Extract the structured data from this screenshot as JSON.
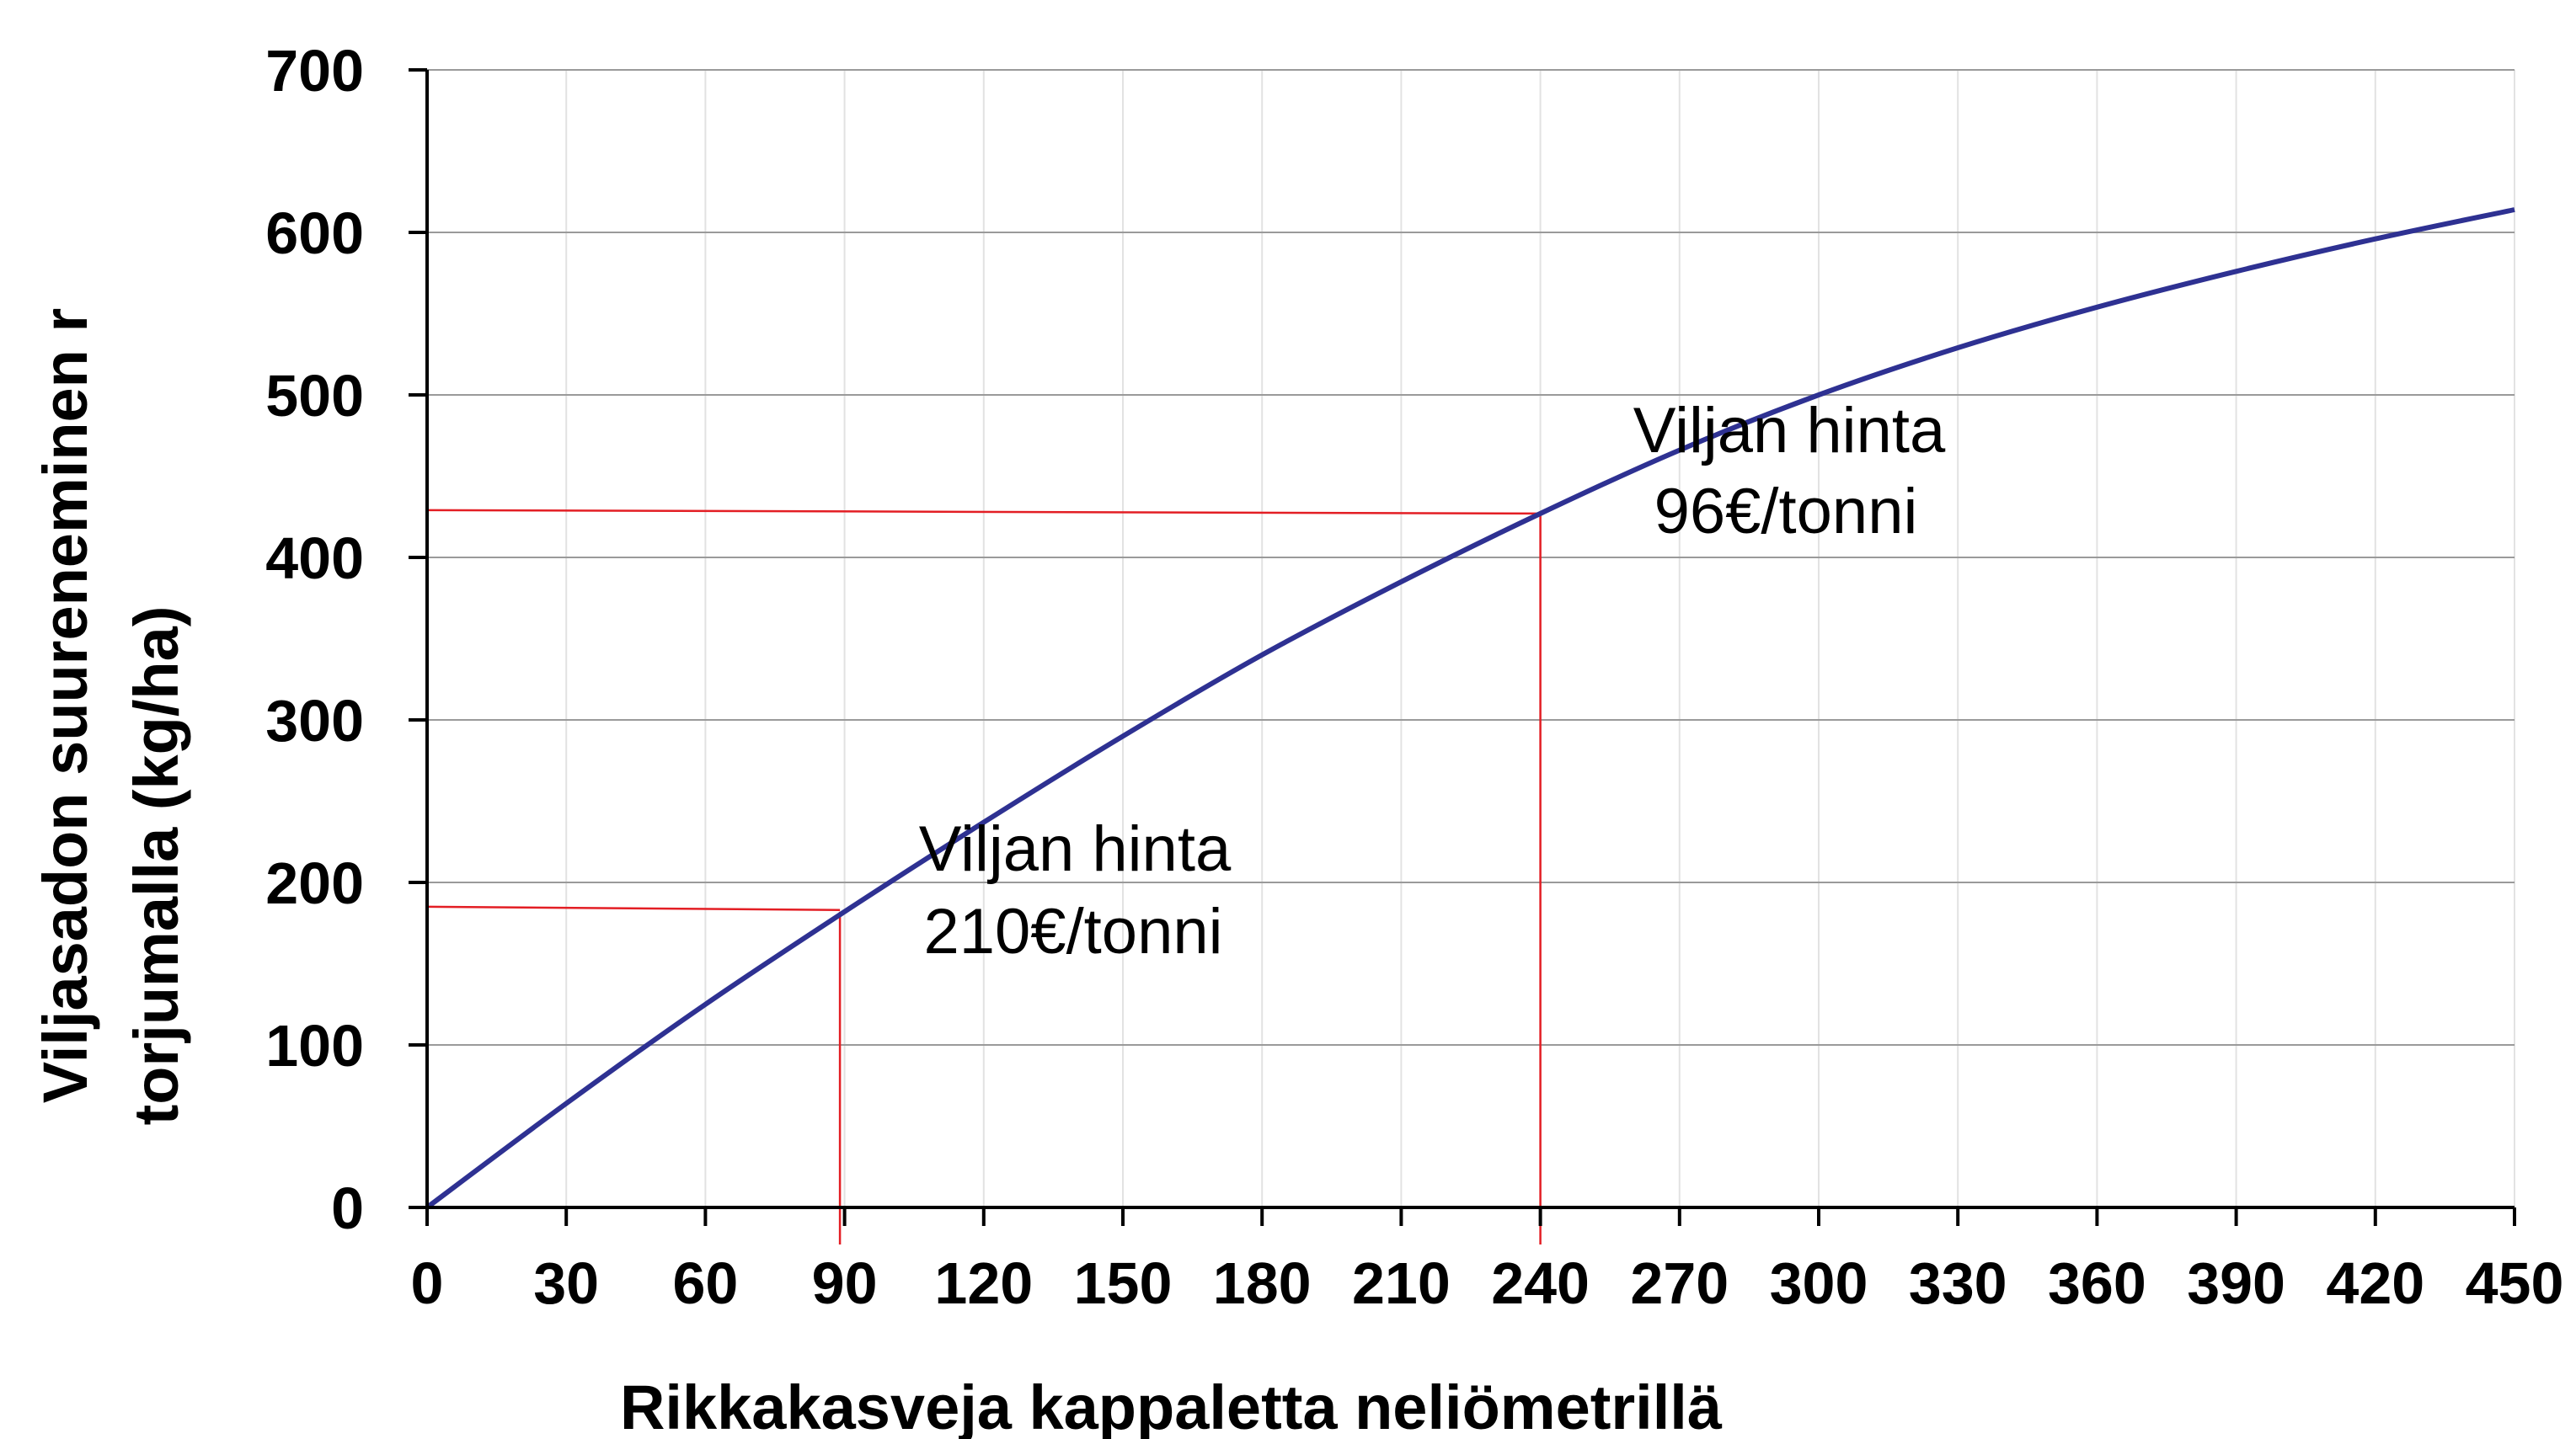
{
  "chart_data": {
    "type": "line",
    "xlabel": "Rikkakasveja kappaletta neliömetrillä",
    "ylabel_lines": [
      "Viljasadon suureneminen r",
      "torjumalla (kg/ha)"
    ],
    "xlim": [
      0,
      450
    ],
    "ylim": [
      0,
      700
    ],
    "x_ticks": [
      0,
      30,
      60,
      90,
      120,
      150,
      180,
      210,
      240,
      270,
      300,
      330,
      360,
      390,
      420,
      450
    ],
    "x_tick_labels": [
      "0",
      "30",
      "60",
      "90",
      "120",
      "150",
      "180",
      "210",
      "240",
      "270",
      "300",
      "330",
      "360",
      "390",
      "420",
      "450"
    ],
    "y_ticks": [
      0,
      100,
      200,
      300,
      400,
      500,
      600,
      700
    ],
    "y_tick_labels": [
      "0",
      "100",
      "200",
      "300",
      "400",
      "500",
      "600",
      "700"
    ],
    "grid": true,
    "series": [
      {
        "color": "#2e3192",
        "x": [
          0,
          30,
          60,
          90,
          120,
          150,
          180,
          210,
          240,
          270,
          300,
          330,
          360,
          390,
          420,
          450
        ],
        "y": [
          0,
          64,
          125,
          182,
          237,
          290,
          340,
          385,
          427,
          466,
          500,
          529,
          554,
          576,
          596,
          614
        ]
      }
    ],
    "annotations": [
      {
        "lines": [
          "Viljan hinta",
          "210€/tonni"
        ],
        "point_x": 89,
        "point_y": 183,
        "color": "#e31e24"
      },
      {
        "lines": [
          "Viljan hinta",
          "96€/tonni"
        ],
        "point_x": 240,
        "point_y": 427,
        "color": "#e31e24"
      }
    ]
  }
}
